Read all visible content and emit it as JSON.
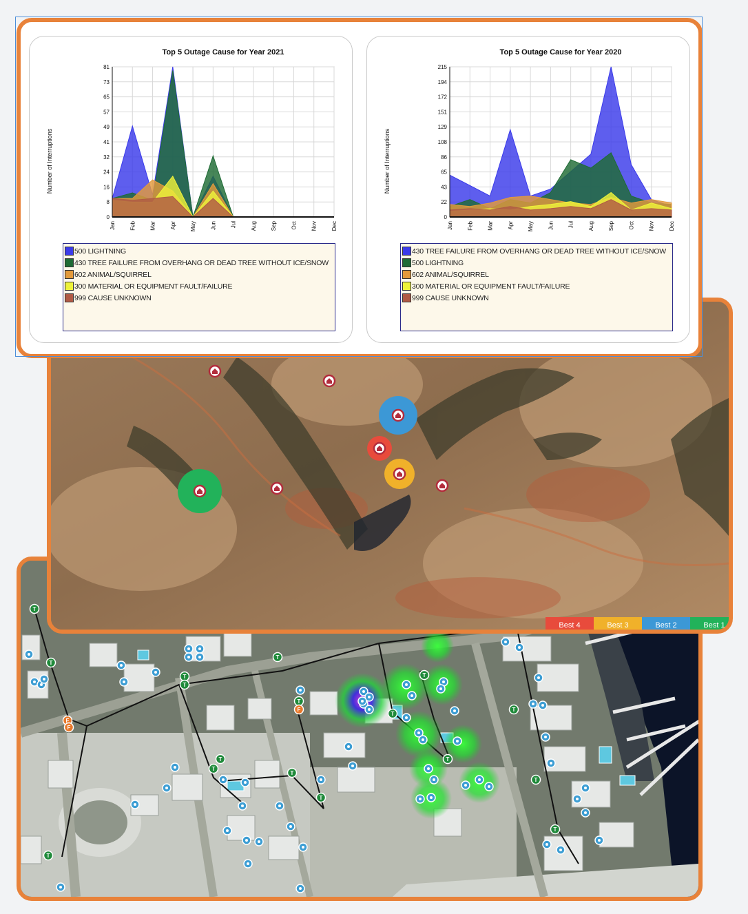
{
  "charts": [
    {
      "title": "Top 5 Outage Cause for Year 2021",
      "ylabel": "Number of Interruptions",
      "y_ticks": [
        "0",
        "8",
        "16",
        "24",
        "32",
        "41",
        "49",
        "57",
        "65",
        "73",
        "81"
      ],
      "months": [
        "Jan",
        "Feb",
        "Mar",
        "Apr",
        "May",
        "Jun",
        "Jul",
        "Aug",
        "Sep",
        "Oct",
        "Nov",
        "Dec"
      ],
      "legend": [
        "500 LIGHTNING",
        "430 TREE FAILURE FROM OVERHANG OR DEAD TREE WITHOUT ICE/SNOW",
        "602 ANIMAL/SQUIRREL",
        "300 MATERIAL OR EQUIPMENT FAULT/FAILURE",
        "999 CAUSE UNKNOWN"
      ]
    },
    {
      "title": "Top 5 Outage Cause for Year 2020",
      "ylabel": "Number of Interruptions",
      "y_ticks": [
        "0",
        "22",
        "43",
        "65",
        "86",
        "108",
        "129",
        "151",
        "172",
        "194",
        "215"
      ],
      "months": [
        "Jan",
        "Feb",
        "Mar",
        "Apr",
        "May",
        "Jun",
        "Jul",
        "Aug",
        "Sep",
        "Oct",
        "Nov",
        "Dec"
      ],
      "legend": [
        "430 TREE FAILURE FROM OVERHANG OR DEAD TREE WITHOUT ICE/SNOW",
        "500 LIGHTNING",
        "602 ANIMAL/SQUIRREL",
        "300 MATERIAL OR EQUIPMENT FAULT/FAILURE",
        "999 CAUSE UNKNOWN"
      ]
    }
  ],
  "chart_data": [
    {
      "type": "area",
      "title": "Top 5 Outage Cause for Year 2021",
      "xlabel": "",
      "ylabel": "Number of Interruptions",
      "ylim": [
        0,
        81
      ],
      "categories": [
        "Jan",
        "Feb",
        "Mar",
        "Apr",
        "May",
        "Jun",
        "Jul",
        "Aug",
        "Sep",
        "Oct",
        "Nov",
        "Dec"
      ],
      "series": [
        {
          "name": "500 LIGHTNING",
          "color": "#3b3bea",
          "values": [
            10,
            49,
            12,
            81,
            0,
            22,
            0,
            null,
            null,
            null,
            null,
            null
          ]
        },
        {
          "name": "430 TREE FAILURE FROM OVERHANG OR DEAD TREE WITHOUT ICE/SNOW",
          "color": "#1f6b35",
          "values": [
            10,
            13,
            9,
            79,
            0,
            33,
            0,
            null,
            null,
            null,
            null,
            null
          ]
        },
        {
          "name": "602 ANIMAL/SQUIRREL",
          "color": "#e39a3c",
          "values": [
            10,
            10,
            20,
            14,
            0,
            18,
            0,
            null,
            null,
            null,
            null,
            null
          ]
        },
        {
          "name": "300 MATERIAL OR EQUIPMENT FAULT/FAILURE",
          "color": "#eef23a",
          "values": [
            9,
            8,
            8,
            22,
            0,
            14,
            0,
            null,
            null,
            null,
            null,
            null
          ]
        },
        {
          "name": "999 CAUSE UNKNOWN",
          "color": "#b05a45",
          "values": [
            10,
            9,
            10,
            11,
            0,
            10,
            0,
            null,
            null,
            null,
            null,
            null
          ]
        }
      ]
    },
    {
      "type": "area",
      "title": "Top 5 Outage Cause for Year 2020",
      "xlabel": "",
      "ylabel": "Number of Interruptions",
      "ylim": [
        0,
        215
      ],
      "categories": [
        "Jan",
        "Feb",
        "Mar",
        "Apr",
        "May",
        "Jun",
        "Jul",
        "Aug",
        "Sep",
        "Oct",
        "Nov",
        "Dec"
      ],
      "series": [
        {
          "name": "430 TREE FAILURE FROM OVERHANG OR DEAD TREE WITHOUT ICE/SNOW",
          "color": "#3b3bea",
          "values": [
            60,
            45,
            30,
            125,
            30,
            40,
            65,
            90,
            215,
            75,
            25,
            15
          ]
        },
        {
          "name": "500 LIGHTNING",
          "color": "#1f6b35",
          "values": [
            15,
            25,
            12,
            25,
            20,
            35,
            82,
            70,
            92,
            30,
            20,
            18
          ]
        },
        {
          "name": "602 ANIMAL/SQUIRREL",
          "color": "#e39a3c",
          "values": [
            18,
            15,
            20,
            28,
            30,
            25,
            20,
            18,
            28,
            20,
            25,
            20
          ]
        },
        {
          "name": "300 MATERIAL OR EQUIPMENT FAULT/FAILURE",
          "color": "#eef23a",
          "values": [
            8,
            10,
            12,
            10,
            15,
            18,
            22,
            15,
            35,
            10,
            20,
            12
          ]
        },
        {
          "name": "999 CAUSE UNKNOWN",
          "color": "#b05a45",
          "values": [
            10,
            12,
            10,
            15,
            10,
            12,
            15,
            12,
            25,
            10,
            12,
            10
          ]
        }
      ]
    }
  ],
  "map_legend": {
    "items": [
      {
        "label": "Best 4",
        "color": "#e84b3c"
      },
      {
        "label": "Best 3",
        "color": "#f0b12a"
      },
      {
        "label": "Best 2",
        "color": "#3c98d6"
      },
      {
        "label": "Best 1",
        "color": "#22b25a"
      }
    ]
  },
  "pole_labels": {
    "transformer": "T",
    "fuse": "F"
  }
}
